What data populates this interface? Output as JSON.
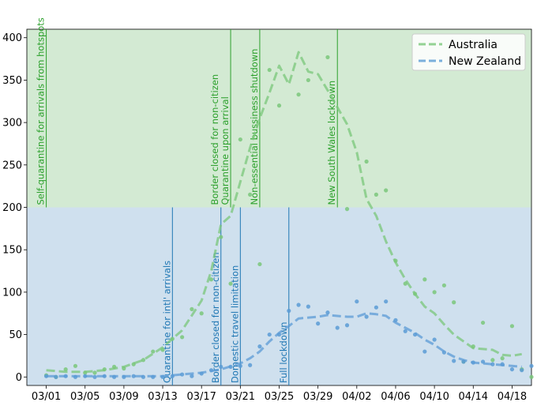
{
  "chart_data": {
    "type": "line",
    "title": "",
    "xlabel": "",
    "ylabel": "",
    "x_ticks": [
      "03/01",
      "03/05",
      "03/09",
      "03/13",
      "03/17",
      "03/21",
      "03/25",
      "03/29",
      "04/02",
      "04/06",
      "04/10",
      "04/14",
      "04/18"
    ],
    "y_ticks": [
      0,
      50,
      100,
      150,
      200,
      250,
      300,
      350,
      400
    ],
    "xlim": [
      "2020-02-28",
      "2020-04-20"
    ],
    "ylim": [
      -10,
      410
    ],
    "grid": false,
    "legend_position": "top-right",
    "regions": [
      {
        "name": "green-zone",
        "y_range": [
          200,
          410
        ],
        "color": "#d3ead3"
      },
      {
        "name": "blue-zone",
        "y_range": [
          -10,
          200
        ],
        "color": "#cfe0ee"
      }
    ],
    "series": [
      {
        "name": "Australia",
        "color": "#7ac77a",
        "style": "dashed",
        "smoothed": [
          {
            "x": "2020-03-01",
            "y": 8
          },
          {
            "x": "2020-03-03",
            "y": 6
          },
          {
            "x": "2020-03-05",
            "y": 6
          },
          {
            "x": "2020-03-07",
            "y": 8
          },
          {
            "x": "2020-03-09",
            "y": 12
          },
          {
            "x": "2020-03-11",
            "y": 20
          },
          {
            "x": "2020-03-13",
            "y": 35
          },
          {
            "x": "2020-03-15",
            "y": 55
          },
          {
            "x": "2020-03-17",
            "y": 90
          },
          {
            "x": "2020-03-18",
            "y": 125
          },
          {
            "x": "2020-03-19",
            "y": 180
          },
          {
            "x": "2020-03-20",
            "y": 190
          },
          {
            "x": "2020-03-21",
            "y": 230
          },
          {
            "x": "2020-03-22",
            "y": 270
          },
          {
            "x": "2020-03-23",
            "y": 305
          },
          {
            "x": "2020-03-24",
            "y": 335
          },
          {
            "x": "2020-03-25",
            "y": 367
          },
          {
            "x": "2020-03-26",
            "y": 345
          },
          {
            "x": "2020-03-27",
            "y": 383
          },
          {
            "x": "2020-03-28",
            "y": 360
          },
          {
            "x": "2020-03-29",
            "y": 357
          },
          {
            "x": "2020-03-30",
            "y": 338
          },
          {
            "x": "2020-03-31",
            "y": 318
          },
          {
            "x": "2020-04-01",
            "y": 298
          },
          {
            "x": "2020-04-02",
            "y": 265
          },
          {
            "x": "2020-04-03",
            "y": 210
          },
          {
            "x": "2020-04-04",
            "y": 190
          },
          {
            "x": "2020-04-05",
            "y": 160
          },
          {
            "x": "2020-04-06",
            "y": 135
          },
          {
            "x": "2020-04-07",
            "y": 115
          },
          {
            "x": "2020-04-08",
            "y": 98
          },
          {
            "x": "2020-04-09",
            "y": 83
          },
          {
            "x": "2020-04-10",
            "y": 75
          },
          {
            "x": "2020-04-11",
            "y": 62
          },
          {
            "x": "2020-04-12",
            "y": 50
          },
          {
            "x": "2020-04-13",
            "y": 42
          },
          {
            "x": "2020-04-14",
            "y": 34
          },
          {
            "x": "2020-04-16",
            "y": 32
          },
          {
            "x": "2020-04-17",
            "y": 26
          },
          {
            "x": "2020-04-18",
            "y": 25
          },
          {
            "x": "2020-04-19",
            "y": 27
          }
        ],
        "points": [
          {
            "x": "2020-03-01",
            "y": 2
          },
          {
            "x": "2020-03-02",
            "y": 0
          },
          {
            "x": "2020-03-03",
            "y": 9
          },
          {
            "x": "2020-03-04",
            "y": 13
          },
          {
            "x": "2020-03-05",
            "y": 5
          },
          {
            "x": "2020-03-06",
            "y": 5
          },
          {
            "x": "2020-03-07",
            "y": 9
          },
          {
            "x": "2020-03-08",
            "y": 12
          },
          {
            "x": "2020-03-09",
            "y": 10
          },
          {
            "x": "2020-03-10",
            "y": 15
          },
          {
            "x": "2020-03-11",
            "y": 20
          },
          {
            "x": "2020-03-12",
            "y": 30
          },
          {
            "x": "2020-03-13",
            "y": 32
          },
          {
            "x": "2020-03-14",
            "y": 45
          },
          {
            "x": "2020-03-15",
            "y": 47
          },
          {
            "x": "2020-03-16",
            "y": 80
          },
          {
            "x": "2020-03-17",
            "y": 75
          },
          {
            "x": "2020-03-18",
            "y": 115
          },
          {
            "x": "2020-03-19",
            "y": 165
          },
          {
            "x": "2020-03-20",
            "y": 110
          },
          {
            "x": "2020-03-21",
            "y": 280
          },
          {
            "x": "2020-03-22",
            "y": 215
          },
          {
            "x": "2020-03-23",
            "y": 133
          },
          {
            "x": "2020-03-24",
            "y": 362
          },
          {
            "x": "2020-03-25",
            "y": 320
          },
          {
            "x": "2020-03-27",
            "y": 333
          },
          {
            "x": "2020-03-28",
            "y": 350
          },
          {
            "x": "2020-03-30",
            "y": 377
          },
          {
            "x": "2020-04-01",
            "y": 198
          },
          {
            "x": "2020-04-03",
            "y": 254
          },
          {
            "x": "2020-04-04",
            "y": 215
          },
          {
            "x": "2020-04-05",
            "y": 220
          },
          {
            "x": "2020-04-06",
            "y": 137
          },
          {
            "x": "2020-04-07",
            "y": 110
          },
          {
            "x": "2020-04-08",
            "y": 98
          },
          {
            "x": "2020-04-09",
            "y": 115
          },
          {
            "x": "2020-04-10",
            "y": 100
          },
          {
            "x": "2020-04-11",
            "y": 108
          },
          {
            "x": "2020-04-12",
            "y": 88
          },
          {
            "x": "2020-04-13",
            "y": 18
          },
          {
            "x": "2020-04-14",
            "y": 36
          },
          {
            "x": "2020-04-15",
            "y": 64
          },
          {
            "x": "2020-04-16",
            "y": 20
          },
          {
            "x": "2020-04-17",
            "y": 22
          },
          {
            "x": "2020-04-18",
            "y": 60
          },
          {
            "x": "2020-04-19",
            "y": 9
          },
          {
            "x": "2020-04-20",
            "y": 0
          }
        ]
      },
      {
        "name": "New Zealand",
        "color": "#5b9bd5",
        "style": "dashed",
        "smoothed": [
          {
            "x": "2020-03-01",
            "y": 1
          },
          {
            "x": "2020-03-05",
            "y": 1
          },
          {
            "x": "2020-03-09",
            "y": 1
          },
          {
            "x": "2020-03-13",
            "y": 1
          },
          {
            "x": "2020-03-15",
            "y": 3
          },
          {
            "x": "2020-03-17",
            "y": 5
          },
          {
            "x": "2020-03-19",
            "y": 9
          },
          {
            "x": "2020-03-21",
            "y": 16
          },
          {
            "x": "2020-03-22",
            "y": 22
          },
          {
            "x": "2020-03-23",
            "y": 30
          },
          {
            "x": "2020-03-24",
            "y": 42
          },
          {
            "x": "2020-03-25",
            "y": 52
          },
          {
            "x": "2020-03-26",
            "y": 60
          },
          {
            "x": "2020-03-27",
            "y": 69
          },
          {
            "x": "2020-03-29",
            "y": 71
          },
          {
            "x": "2020-03-30",
            "y": 73
          },
          {
            "x": "2020-04-01",
            "y": 71
          },
          {
            "x": "2020-04-02",
            "y": 71
          },
          {
            "x": "2020-04-03",
            "y": 75
          },
          {
            "x": "2020-04-04",
            "y": 74
          },
          {
            "x": "2020-04-05",
            "y": 72
          },
          {
            "x": "2020-04-06",
            "y": 64
          },
          {
            "x": "2020-04-07",
            "y": 58
          },
          {
            "x": "2020-04-08",
            "y": 52
          },
          {
            "x": "2020-04-09",
            "y": 44
          },
          {
            "x": "2020-04-10",
            "y": 38
          },
          {
            "x": "2020-04-11",
            "y": 30
          },
          {
            "x": "2020-04-12",
            "y": 24
          },
          {
            "x": "2020-04-13",
            "y": 20
          },
          {
            "x": "2020-04-14",
            "y": 17
          },
          {
            "x": "2020-04-15",
            "y": 16
          },
          {
            "x": "2020-04-16",
            "y": 15
          },
          {
            "x": "2020-04-17",
            "y": 14
          },
          {
            "x": "2020-04-18",
            "y": 13
          },
          {
            "x": "2020-04-19",
            "y": 12
          }
        ],
        "points": [
          {
            "x": "2020-03-01",
            "y": 1
          },
          {
            "x": "2020-03-02",
            "y": 0
          },
          {
            "x": "2020-03-03",
            "y": 1
          },
          {
            "x": "2020-03-04",
            "y": 0
          },
          {
            "x": "2020-03-05",
            "y": 1
          },
          {
            "x": "2020-03-06",
            "y": 0
          },
          {
            "x": "2020-03-07",
            "y": 1
          },
          {
            "x": "2020-03-08",
            "y": 0
          },
          {
            "x": "2020-03-09",
            "y": 0
          },
          {
            "x": "2020-03-10",
            "y": 1
          },
          {
            "x": "2020-03-11",
            "y": 0
          },
          {
            "x": "2020-03-12",
            "y": 0
          },
          {
            "x": "2020-03-13",
            "y": 0
          },
          {
            "x": "2020-03-14",
            "y": 1
          },
          {
            "x": "2020-03-15",
            "y": 3
          },
          {
            "x": "2020-03-16",
            "y": 1
          },
          {
            "x": "2020-03-17",
            "y": 4
          },
          {
            "x": "2020-03-18",
            "y": 8
          },
          {
            "x": "2020-03-19",
            "y": 12
          },
          {
            "x": "2020-03-20",
            "y": 12
          },
          {
            "x": "2020-03-21",
            "y": 13
          },
          {
            "x": "2020-03-22",
            "y": 14
          },
          {
            "x": "2020-03-23",
            "y": 36
          },
          {
            "x": "2020-03-24",
            "y": 50
          },
          {
            "x": "2020-03-25",
            "y": 50
          },
          {
            "x": "2020-03-26",
            "y": 78
          },
          {
            "x": "2020-03-27",
            "y": 85
          },
          {
            "x": "2020-03-28",
            "y": 83
          },
          {
            "x": "2020-03-29",
            "y": 63
          },
          {
            "x": "2020-03-30",
            "y": 76
          },
          {
            "x": "2020-03-31",
            "y": 58
          },
          {
            "x": "2020-04-01",
            "y": 61
          },
          {
            "x": "2020-04-02",
            "y": 89
          },
          {
            "x": "2020-04-03",
            "y": 71
          },
          {
            "x": "2020-04-04",
            "y": 82
          },
          {
            "x": "2020-04-05",
            "y": 89
          },
          {
            "x": "2020-04-06",
            "y": 67
          },
          {
            "x": "2020-04-07",
            "y": 54
          },
          {
            "x": "2020-04-08",
            "y": 50
          },
          {
            "x": "2020-04-09",
            "y": 30
          },
          {
            "x": "2020-04-10",
            "y": 44
          },
          {
            "x": "2020-04-11",
            "y": 29
          },
          {
            "x": "2020-04-12",
            "y": 19
          },
          {
            "x": "2020-04-13",
            "y": 18
          },
          {
            "x": "2020-04-14",
            "y": 17
          },
          {
            "x": "2020-04-15",
            "y": 18
          },
          {
            "x": "2020-04-16",
            "y": 15
          },
          {
            "x": "2020-04-17",
            "y": 15
          },
          {
            "x": "2020-04-18",
            "y": 9
          },
          {
            "x": "2020-04-19",
            "y": 8
          },
          {
            "x": "2020-04-20",
            "y": 13
          }
        ]
      }
    ],
    "annotations": [
      {
        "label": "Self-quarantine for arrivals from hotspots",
        "x": "2020-03-01",
        "y_range": [
          200,
          410
        ],
        "color": "#2ca02c",
        "series": "Australia"
      },
      {
        "label": "Border closed for non-citizen\nQuarantine upon arrival",
        "x": "2020-03-20",
        "y_range": [
          200,
          410
        ],
        "color": "#2ca02c",
        "series": "Australia"
      },
      {
        "label": "Non-essential bussiness shutdown",
        "x": "2020-03-23",
        "y_range": [
          200,
          410
        ],
        "color": "#2ca02c",
        "series": "Australia"
      },
      {
        "label": "New South Wales lockdown",
        "x": "2020-03-31",
        "y_range": [
          200,
          410
        ],
        "color": "#2ca02c",
        "series": "Australia"
      },
      {
        "label": "Quarantine for intl' arrivals",
        "x": "2020-03-14",
        "y_range": [
          -10,
          200
        ],
        "color": "#1f77b4",
        "series": "New Zealand"
      },
      {
        "label": "Border closed for non-citizen",
        "x": "2020-03-19",
        "y_range": [
          -10,
          200
        ],
        "color": "#1f77b4",
        "series": "New Zealand"
      },
      {
        "label": "Domestic travel limitation",
        "x": "2020-03-21",
        "y_range": [
          -10,
          200
        ],
        "color": "#1f77b4",
        "series": "New Zealand"
      },
      {
        "label": "Full lockdown",
        "x": "2020-03-26",
        "y_range": [
          -10,
          200
        ],
        "color": "#1f77b4",
        "series": "New Zealand"
      }
    ]
  }
}
